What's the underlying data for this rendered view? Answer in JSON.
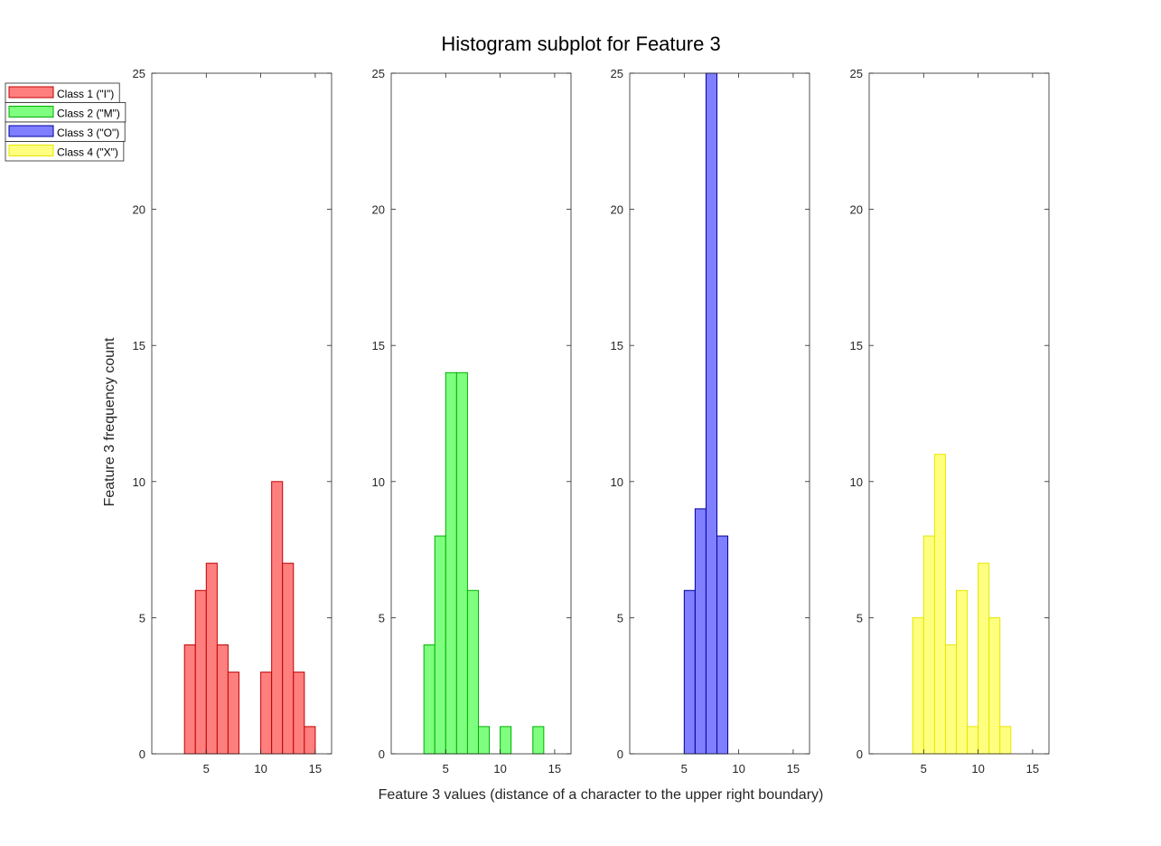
{
  "chart_data": {
    "type": "bar",
    "title": "Histogram subplot for Feature 3",
    "xlabel": "Feature 3 values (distance of a character to the upper right boundary)",
    "ylabel": "Feature 3 frequency count",
    "xlim": [
      0,
      16.5
    ],
    "ylim": [
      0,
      25
    ],
    "xticks": [
      5,
      10,
      15
    ],
    "yticks": [
      0,
      5,
      10,
      15,
      20,
      25
    ],
    "bin_width": 1,
    "grid": false,
    "legend_position": "top-left",
    "legend": [
      "Class 1 (\"I\")",
      "Class 2 (\"M\")",
      "Class 3 (\"O\")",
      "Class 4 (\"X\")"
    ],
    "subplots": [
      {
        "name": "Class 1 (\"I\")",
        "fill": "#ff7f7f",
        "edge": "#c00000",
        "bin_starts": [
          3,
          4,
          5,
          6,
          7,
          10,
          11,
          12,
          13,
          14
        ],
        "values": [
          4,
          6,
          7,
          4,
          3,
          3,
          10,
          7,
          3,
          1
        ]
      },
      {
        "name": "Class 2 (\"M\")",
        "fill": "#7fff7f",
        "edge": "#00b000",
        "bin_starts": [
          3,
          4,
          5,
          6,
          7,
          8,
          10,
          13
        ],
        "values": [
          4,
          8,
          14,
          14,
          6,
          1,
          1,
          1
        ]
      },
      {
        "name": "Class 3 (\"O\")",
        "fill": "#7f7fff",
        "edge": "#0000a0",
        "bin_starts": [
          5,
          6,
          7,
          8
        ],
        "values": [
          6,
          9,
          25,
          8
        ]
      },
      {
        "name": "Class 4 (\"X\")",
        "fill": "#ffff7f",
        "edge": "#e6e600",
        "bin_starts": [
          4,
          5,
          6,
          7,
          8,
          9,
          10,
          11,
          12
        ],
        "values": [
          5,
          8,
          11,
          4,
          6,
          1,
          7,
          5,
          1
        ]
      }
    ]
  }
}
